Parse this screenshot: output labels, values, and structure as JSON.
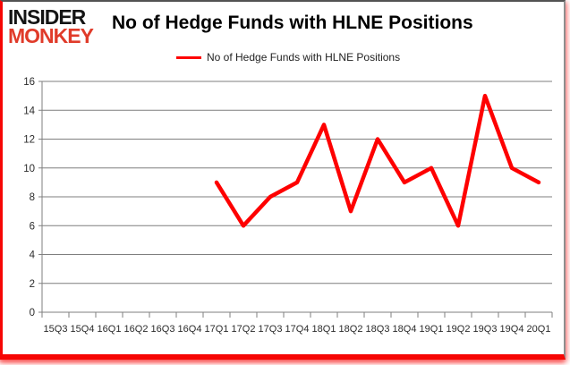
{
  "logo": {
    "line1": "INSIDER",
    "line2": "MONKEY"
  },
  "title": "No of Hedge Funds with HLNE Positions",
  "legend": {
    "label": "No of Hedge Funds with HLNE Positions"
  },
  "colors": {
    "line": "#fe0000",
    "grid": "#7f7f7f",
    "axis": "#7f7f7f",
    "tick_text": "#2b2b2b",
    "logo_black": "#141414",
    "logo_red": "#e03b2a",
    "frame_red": "#f60604",
    "frame_gray": "#525252"
  },
  "chart_data": {
    "type": "line",
    "title": "No of Hedge Funds with HLNE Positions",
    "categories": [
      "15Q3",
      "15Q4",
      "16Q1",
      "16Q2",
      "16Q3",
      "16Q4",
      "17Q1",
      "17Q2",
      "17Q3",
      "17Q4",
      "18Q1",
      "18Q2",
      "18Q3",
      "18Q4",
      "19Q1",
      "19Q2",
      "19Q3",
      "19Q4",
      "20Q1"
    ],
    "series": [
      {
        "name": "No of Hedge Funds with HLNE Positions",
        "values": [
          null,
          null,
          null,
          null,
          null,
          null,
          9,
          6,
          8,
          9,
          13,
          7,
          12,
          9,
          10,
          6,
          15,
          10,
          9
        ]
      }
    ],
    "xlabel": "",
    "ylabel": "",
    "ylim": [
      0,
      16
    ],
    "ytick_step": 2,
    "grid": "horizontal",
    "legend_position": "top-center"
  }
}
